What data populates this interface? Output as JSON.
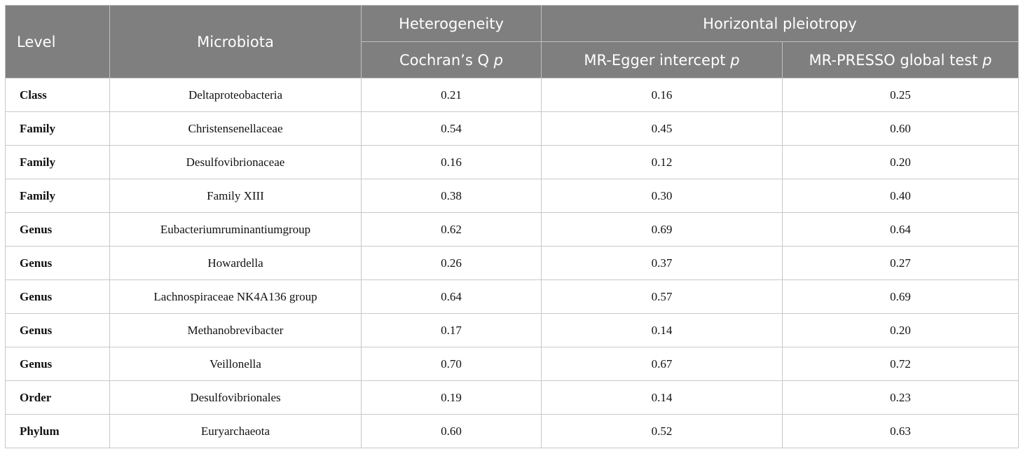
{
  "headers": {
    "level": "Level",
    "microbiota": "Microbiota",
    "heterogeneity": "Heterogeneity",
    "horizontal_pleiotropy": "Horizontal pleiotropy",
    "cochran_q": "Cochran’s Q",
    "mr_egger": "MR-Egger intercept",
    "mr_presso": "MR-PRESSO global test",
    "p_symbol": "p"
  },
  "rows": [
    {
      "level": "Class",
      "microbiota": "Deltaproteobacteria",
      "cochran_q_p": "0.21",
      "mr_egger_p": "0.16",
      "mr_presso_p": "0.25"
    },
    {
      "level": "Family",
      "microbiota": "Christensenellaceae",
      "cochran_q_p": "0.54",
      "mr_egger_p": "0.45",
      "mr_presso_p": "0.60"
    },
    {
      "level": "Family",
      "microbiota": "Desulfovibrionaceae",
      "cochran_q_p": "0.16",
      "mr_egger_p": "0.12",
      "mr_presso_p": "0.20"
    },
    {
      "level": "Family",
      "microbiota": "Family XIII",
      "cochran_q_p": "0.38",
      "mr_egger_p": "0.30",
      "mr_presso_p": "0.40"
    },
    {
      "level": "Genus",
      "microbiota": "Eubacteriumruminantiumgroup",
      "cochran_q_p": "0.62",
      "mr_egger_p": "0.69",
      "mr_presso_p": "0.64"
    },
    {
      "level": "Genus",
      "microbiota": "Howardella",
      "cochran_q_p": "0.26",
      "mr_egger_p": "0.37",
      "mr_presso_p": "0.27"
    },
    {
      "level": "Genus",
      "microbiota": "Lachnospiraceae NK4A136 group",
      "cochran_q_p": "0.64",
      "mr_egger_p": "0.57",
      "mr_presso_p": "0.69"
    },
    {
      "level": "Genus",
      "microbiota": "Methanobrevibacter",
      "cochran_q_p": "0.17",
      "mr_egger_p": "0.14",
      "mr_presso_p": "0.20"
    },
    {
      "level": "Genus",
      "microbiota": "Veillonella",
      "cochran_q_p": "0.70",
      "mr_egger_p": "0.67",
      "mr_presso_p": "0.72"
    },
    {
      "level": "Order",
      "microbiota": "Desulfovibrionales",
      "cochran_q_p": "0.19",
      "mr_egger_p": "0.14",
      "mr_presso_p": "0.23"
    },
    {
      "level": "Phylum",
      "microbiota": "Euryarchaeota",
      "cochran_q_p": "0.60",
      "mr_egger_p": "0.52",
      "mr_presso_p": "0.63"
    }
  ]
}
